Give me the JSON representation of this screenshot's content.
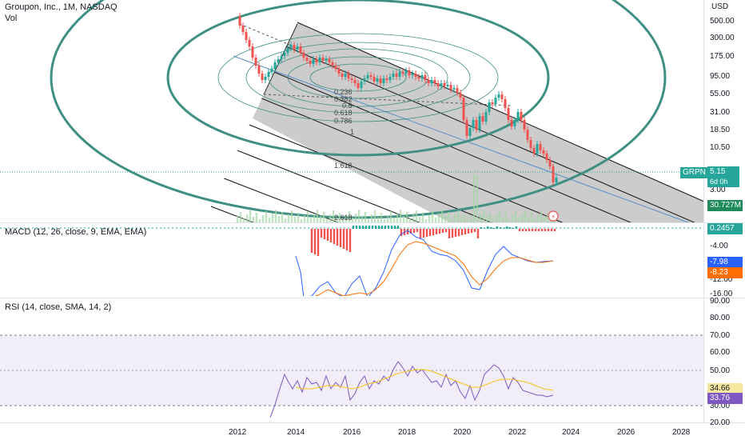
{
  "header": {
    "title": "Groupon, Inc., 1M, NASDAQ",
    "vol_label": "Vol",
    "currency": "USD"
  },
  "indicators": {
    "macd_label": "MACD (12, 26, close, 9, EMA, EMA)",
    "rsi_label": "RSI (14, close, SMA, 14, 2)"
  },
  "badges": {
    "symbol": "GRPN",
    "price": "5.15",
    "countdown": "6d 0h",
    "volume": "30.727M",
    "macd_hist": "0.2457",
    "macd_line": "-7.98",
    "macd_signal": "-8.23",
    "rsi_signal": "34.66",
    "rsi_value": "33.76"
  },
  "fib_levels": [
    "0.236",
    "0.382",
    "0.5",
    "0.618",
    "0.786",
    "1",
    "1.618",
    "2.618"
  ],
  "price_axis": [
    "500.00",
    "300.00",
    "175.00",
    "95.00",
    "55.00",
    "31.00",
    "18.50",
    "10.50",
    "3.00"
  ],
  "macd_axis": [
    "-4.00",
    "-12.00",
    "-16.00"
  ],
  "rsi_axis": [
    "90.00",
    "80.00",
    "70.00",
    "60.00",
    "50.00",
    "30.00",
    "20.00"
  ],
  "time_axis": [
    "2012",
    "2014",
    "2016",
    "2018",
    "2020",
    "2022",
    "2024",
    "2026",
    "2028"
  ],
  "colors": {
    "up": "#26a69a",
    "down": "#ef5350",
    "circle": "#3f8f84",
    "macd": "#2962ff",
    "signal": "#ff6d00",
    "rsi": "#7e57c2",
    "rsi_ma": "#f5c518"
  }
}
